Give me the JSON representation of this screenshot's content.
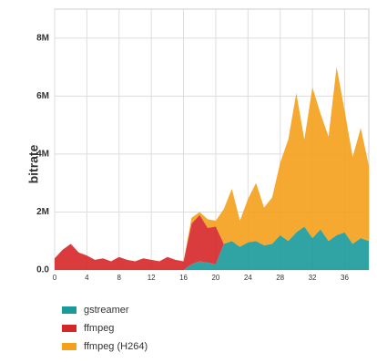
{
  "chart_data": {
    "type": "stacked_area",
    "y_label": "bitrate",
    "x": [
      0,
      1,
      2,
      3,
      4,
      5,
      6,
      7,
      8,
      9,
      10,
      11,
      12,
      13,
      14,
      15,
      16,
      17,
      18,
      19,
      20,
      21,
      22,
      23,
      24,
      25,
      26,
      27,
      28,
      29,
      30,
      31,
      32,
      33,
      34,
      35,
      36,
      37,
      38,
      39
    ],
    "xlim": [
      0,
      39
    ],
    "xticks": [
      0,
      4,
      8,
      12,
      16,
      20,
      24,
      28,
      32,
      36
    ],
    "ylim": [
      0,
      9000000
    ],
    "yticks": [
      {
        "value": 0,
        "label": "0.0"
      },
      {
        "value": 2000000,
        "label": "2M"
      },
      {
        "value": 4000000,
        "label": "4M"
      },
      {
        "value": 6000000,
        "label": "6M"
      },
      {
        "value": 8000000,
        "label": "8M"
      }
    ],
    "grid": true,
    "series": [
      {
        "name": "gstreamer",
        "color": "#1a9a9a",
        "values": [
          0,
          0,
          0,
          0,
          0,
          0,
          0,
          0,
          0,
          0,
          0,
          0,
          0,
          0,
          0,
          0,
          0,
          200000,
          300000,
          250000,
          200000,
          900000,
          1000000,
          800000,
          950000,
          1000000,
          850000,
          900000,
          1200000,
          1000000,
          1300000,
          1500000,
          1100000,
          1400000,
          1000000,
          1200000,
          1300000,
          900000,
          1100000,
          1000000
        ]
      },
      {
        "name": "ffmpeg",
        "color": "#d62728",
        "values": [
          400000,
          700000,
          900000,
          600000,
          500000,
          350000,
          400000,
          300000,
          450000,
          350000,
          300000,
          400000,
          350000,
          300000,
          450000,
          350000,
          300000,
          1400000,
          1600000,
          1200000,
          1300000,
          0,
          0,
          0,
          0,
          0,
          0,
          0,
          0,
          0,
          0,
          0,
          0,
          0,
          0,
          0,
          0,
          0,
          0,
          0
        ]
      },
      {
        "name": "ffmpeg (H264)",
        "color": "#f5a01a",
        "values": [
          0,
          0,
          0,
          0,
          0,
          0,
          0,
          0,
          0,
          0,
          0,
          0,
          0,
          0,
          0,
          0,
          0,
          200000,
          100000,
          300000,
          200000,
          1200000,
          1800000,
          900000,
          1500000,
          2000000,
          1300000,
          1600000,
          2500000,
          3500000,
          4800000,
          3000000,
          5200000,
          4000000,
          3600000,
          5800000,
          4200000,
          3000000,
          3800000,
          2600000
        ]
      }
    ],
    "legend": "bottom-left"
  }
}
